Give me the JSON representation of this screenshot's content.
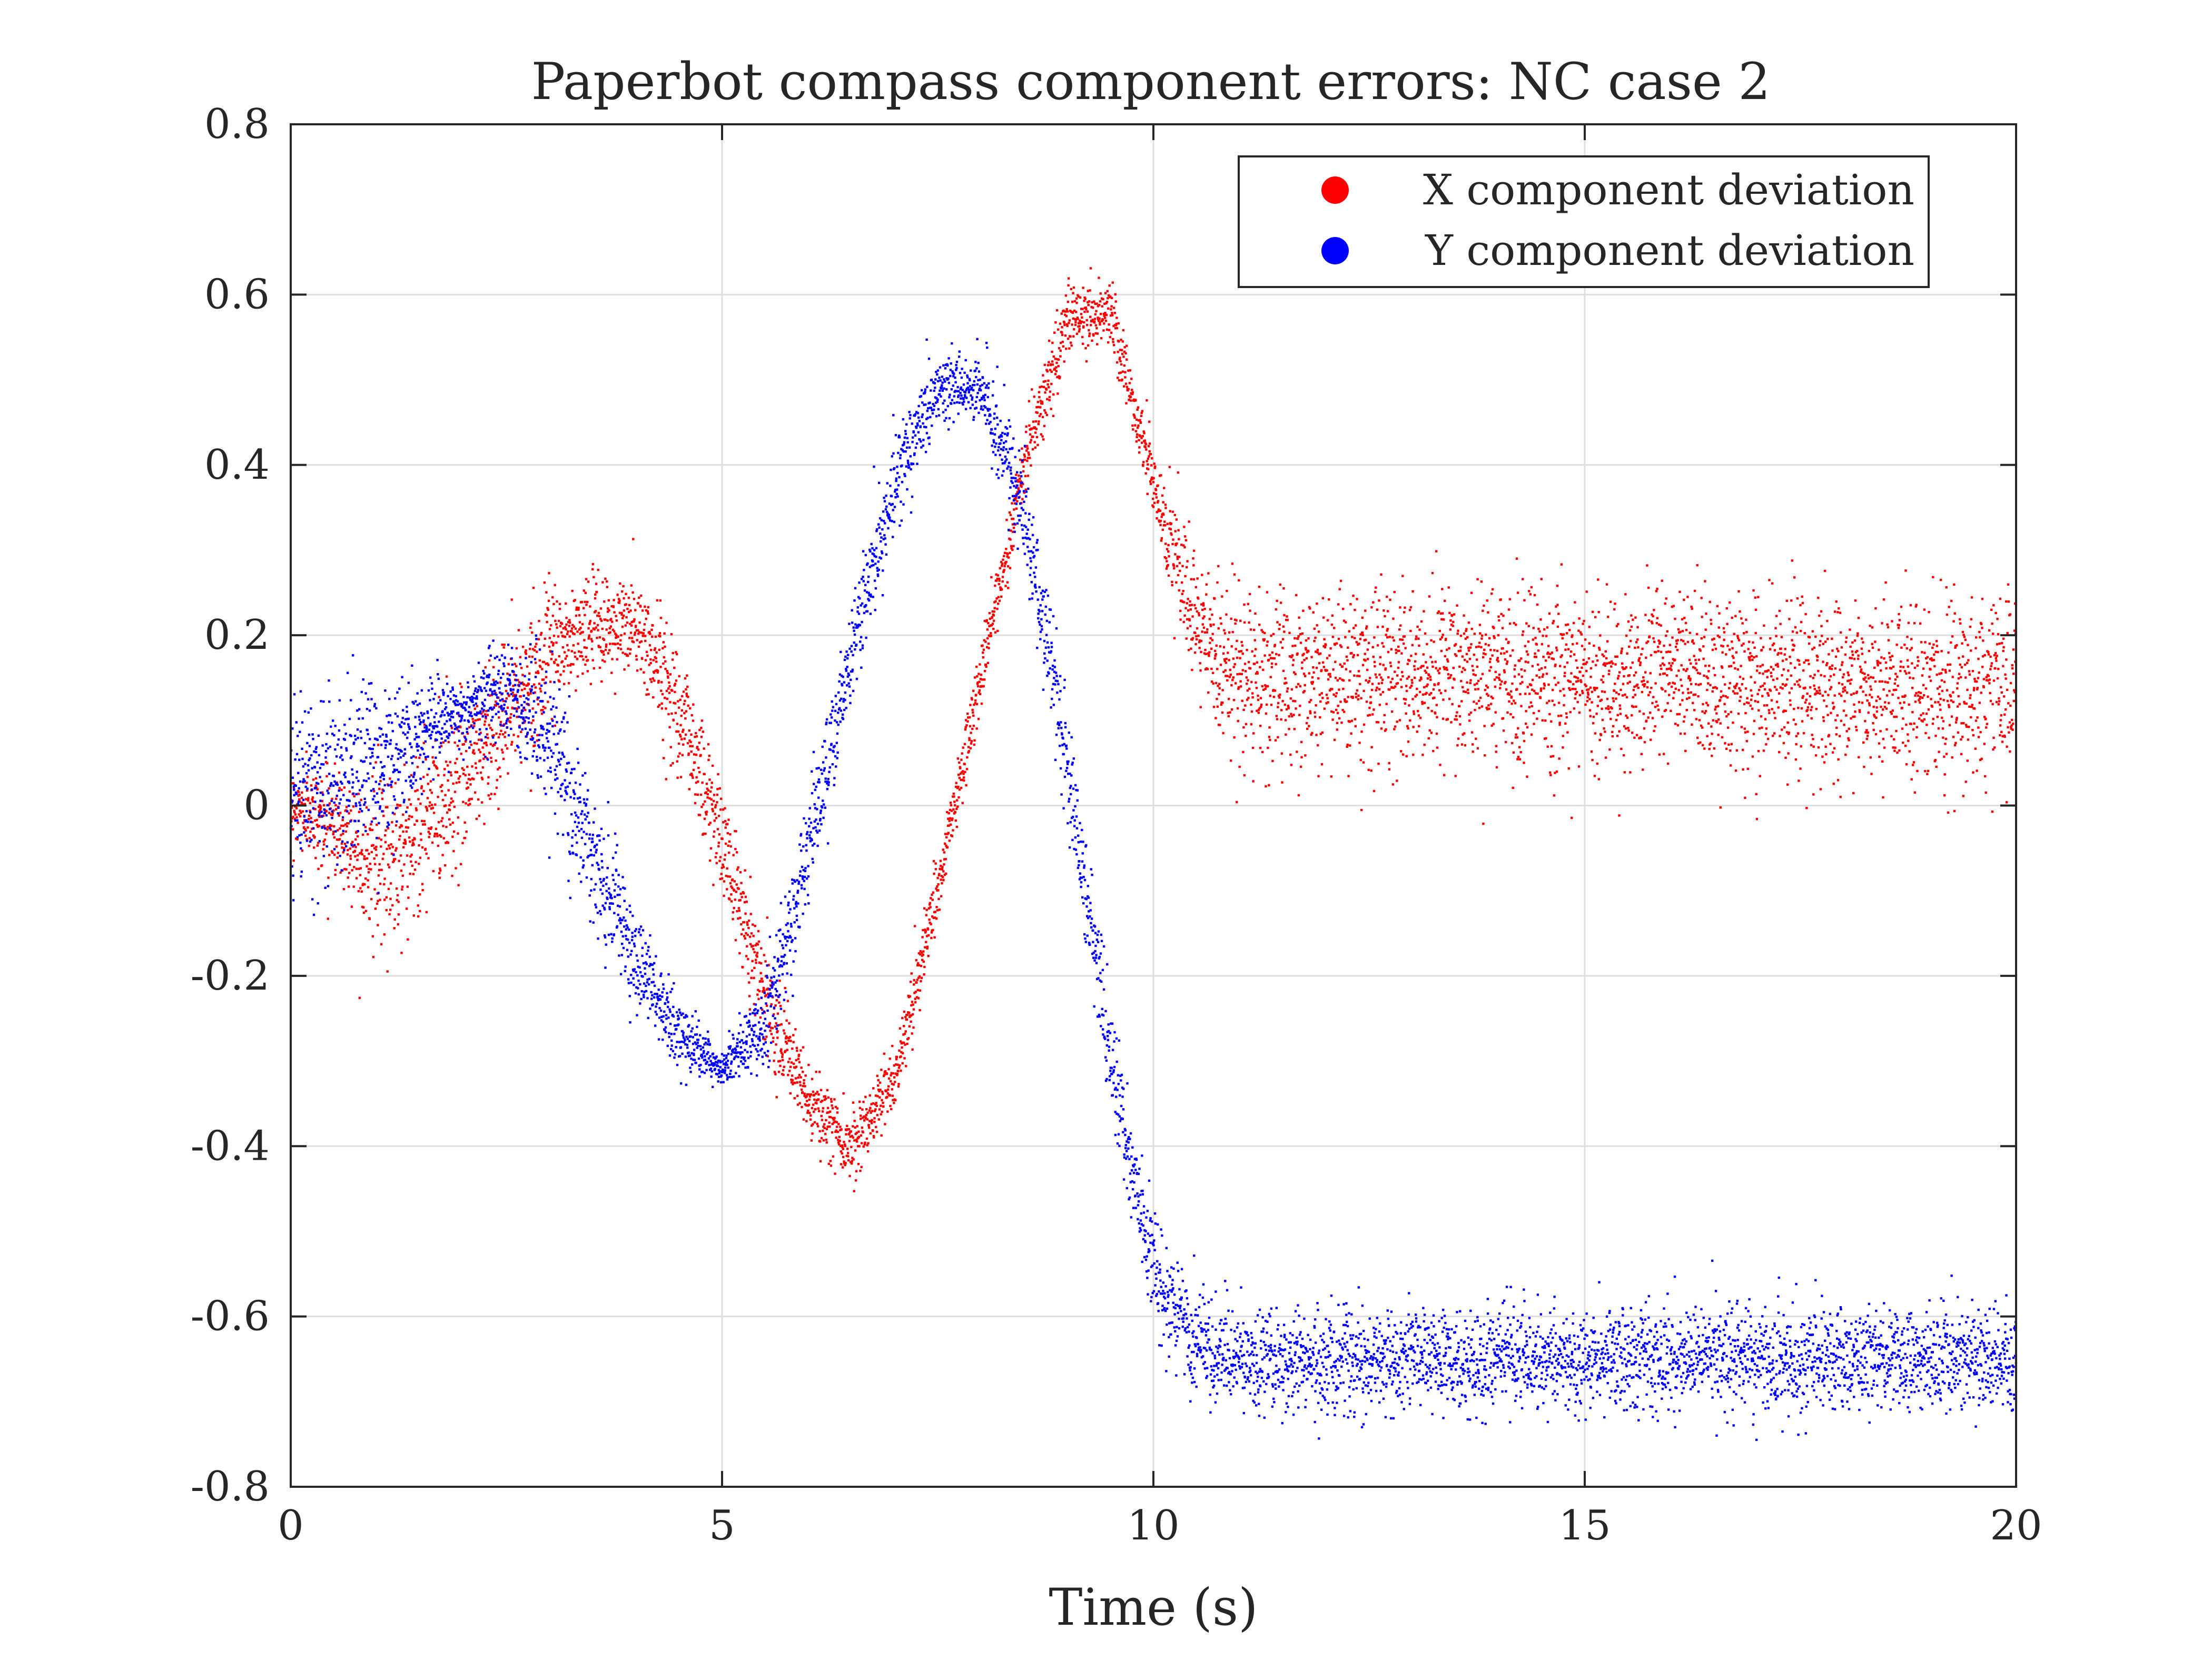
{
  "chart_data": {
    "type": "scatter",
    "title": "Paperbot compass component errors: NC case 2",
    "xlabel": "Time (s)",
    "ylabel": "",
    "xlim": [
      0,
      20
    ],
    "ylim": [
      -0.8,
      0.8
    ],
    "xticks": [
      "0",
      "5",
      "10",
      "15",
      "20"
    ],
    "yticks": [
      "0.8",
      "0.6",
      "0.4",
      "0.2",
      "0",
      "-0.2",
      "-0.4",
      "-0.6",
      "-0.8"
    ],
    "grid": true,
    "legend_position": "top-right",
    "series": [
      {
        "name": "X component deviation",
        "color": "#ff0000",
        "trend": {
          "x": [
            0,
            0.5,
            1.0,
            1.5,
            2.0,
            2.5,
            3.0,
            3.5,
            4.0,
            4.5,
            5.0,
            5.5,
            6.0,
            6.5,
            7.0,
            7.5,
            8.0,
            8.5,
            9.0,
            9.5,
            10.0,
            10.5,
            11.0,
            12.0,
            13.0,
            14.0,
            15.0,
            16.0,
            17.0,
            18.0,
            19.0,
            20.0
          ],
          "y": [
            0.0,
            -0.02,
            -0.07,
            -0.03,
            0.04,
            0.11,
            0.18,
            0.21,
            0.21,
            0.12,
            -0.04,
            -0.22,
            -0.35,
            -0.4,
            -0.32,
            -0.1,
            0.15,
            0.4,
            0.57,
            0.58,
            0.38,
            0.2,
            0.15,
            0.15,
            0.15,
            0.15,
            0.15,
            0.15,
            0.14,
            0.14,
            0.14,
            0.14
          ]
        },
        "spread": [
          0.02,
          0.03,
          0.05,
          0.05,
          0.05,
          0.04,
          0.03,
          0.03,
          0.03,
          0.04,
          0.03,
          0.03,
          0.02,
          0.02,
          0.02,
          0.02,
          0.02,
          0.02,
          0.02,
          0.02,
          0.02,
          0.04,
          0.05,
          0.05,
          0.05,
          0.05,
          0.05,
          0.05,
          0.05,
          0.05,
          0.05,
          0.05
        ]
      },
      {
        "name": "Y component deviation",
        "color": "#0000ff",
        "trend": {
          "x": [
            0,
            0.5,
            1.0,
            1.5,
            2.0,
            2.5,
            3.0,
            3.5,
            4.0,
            4.5,
            5.0,
            5.5,
            6.0,
            6.5,
            7.0,
            7.5,
            8.0,
            8.5,
            9.0,
            9.5,
            10.0,
            10.5,
            11.0,
            12.0,
            13.0,
            14.0,
            15.0,
            16.0,
            17.0,
            18.0,
            19.0,
            20.0
          ],
          "y": [
            0.02,
            0.03,
            0.05,
            0.09,
            0.11,
            0.14,
            0.08,
            -0.06,
            -0.18,
            -0.27,
            -0.31,
            -0.26,
            -0.05,
            0.18,
            0.38,
            0.49,
            0.49,
            0.35,
            0.05,
            -0.3,
            -0.55,
            -0.63,
            -0.65,
            -0.65,
            -0.65,
            -0.65,
            -0.65,
            -0.65,
            -0.65,
            -0.65,
            -0.65,
            -0.65
          ]
        },
        "spread": [
          0.05,
          0.05,
          0.05,
          0.03,
          0.02,
          0.03,
          0.04,
          0.04,
          0.03,
          0.02,
          0.01,
          0.03,
          0.03,
          0.03,
          0.03,
          0.02,
          0.02,
          0.03,
          0.03,
          0.03,
          0.03,
          0.03,
          0.03,
          0.03,
          0.03,
          0.03,
          0.03,
          0.03,
          0.03,
          0.03,
          0.03,
          0.03
        ]
      }
    ]
  }
}
